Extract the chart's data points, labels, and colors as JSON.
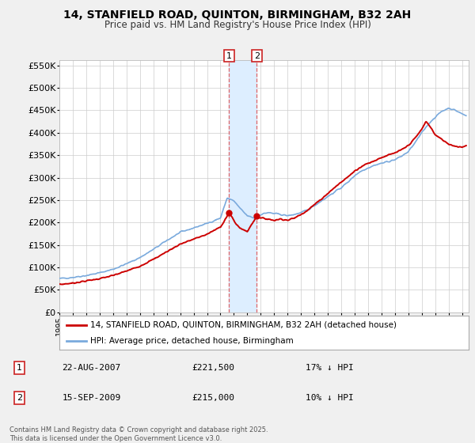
{
  "title_line1": "14, STANFIELD ROAD, QUINTON, BIRMINGHAM, B32 2AH",
  "title_line2": "Price paid vs. HM Land Registry's House Price Index (HPI)",
  "legend_label_red": "14, STANFIELD ROAD, QUINTON, BIRMINGHAM, B32 2AH (detached house)",
  "legend_label_blue": "HPI: Average price, detached house, Birmingham",
  "transaction1_date": "22-AUG-2007",
  "transaction1_price": "£221,500",
  "transaction1_hpi": "17% ↓ HPI",
  "transaction2_date": "15-SEP-2009",
  "transaction2_price": "£215,000",
  "transaction2_hpi": "10% ↓ HPI",
  "footer": "Contains HM Land Registry data © Crown copyright and database right 2025.\nThis data is licensed under the Open Government Licence v3.0.",
  "background_color": "#f0f0f0",
  "plot_bg_color": "#ffffff",
  "red_color": "#cc0000",
  "blue_color": "#7aaadd",
  "shade_color": "#ddeeff",
  "transaction1_x": 2007.64,
  "transaction2_x": 2009.71,
  "marker1_y": 221500,
  "marker2_y": 215000,
  "ylim": [
    0,
    562500
  ],
  "yticks": [
    0,
    50000,
    100000,
    150000,
    200000,
    250000,
    300000,
    350000,
    400000,
    450000,
    500000,
    550000
  ],
  "ytick_labels": [
    "£0",
    "£50K",
    "£100K",
    "£150K",
    "£200K",
    "£250K",
    "£300K",
    "£350K",
    "£400K",
    "£450K",
    "£500K",
    "£550K"
  ],
  "xmin": 1995.0,
  "xmax": 2025.5
}
